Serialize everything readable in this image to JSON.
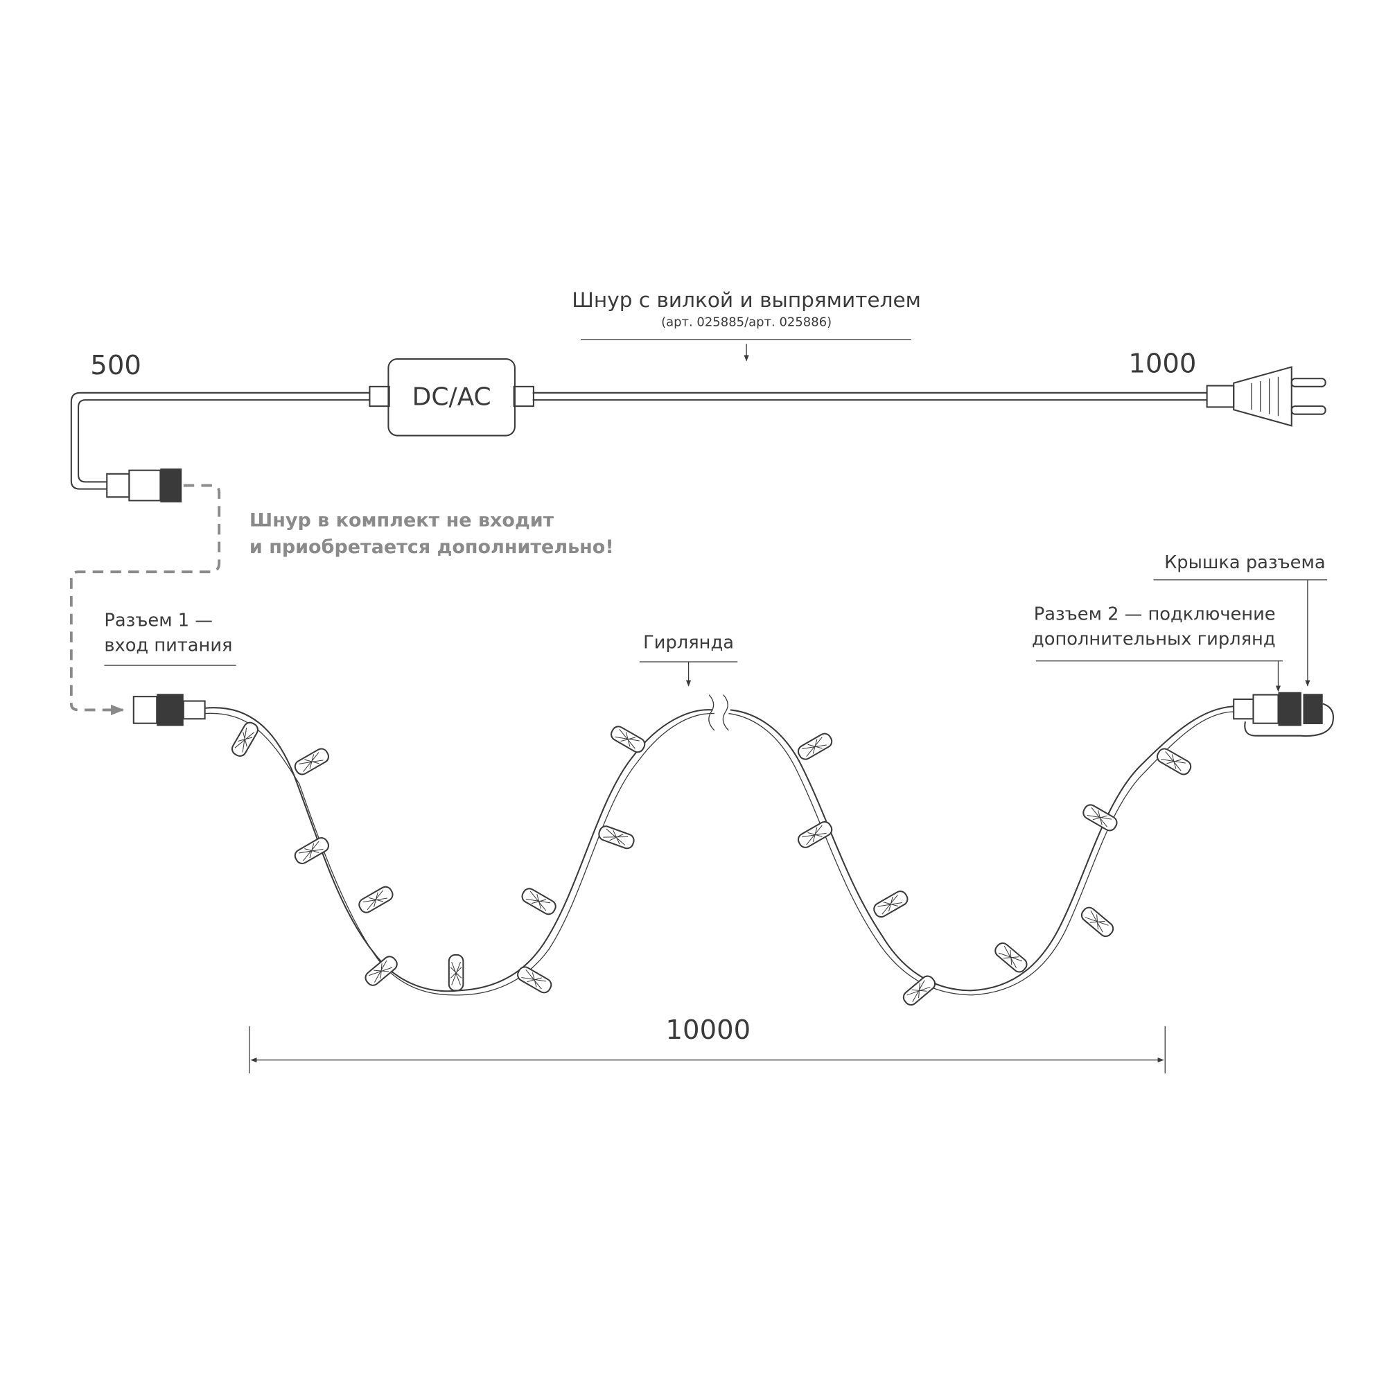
{
  "cord": {
    "title": "Шнур с вилкой и выпрямителем",
    "article": "(арт. 025885/арт. 025886)",
    "left_length": 500,
    "right_length": 1000,
    "box_label": "DC/AC"
  },
  "note": {
    "line1": "Шнур в комплект не входит",
    "line2": "и приобретается дополнительно!"
  },
  "connector1": {
    "line1": "Разъем 1 —",
    "line2": "вход питания"
  },
  "garland": {
    "label": "Гирлянда",
    "length": 10000
  },
  "cap": {
    "label": "Крышка разъема"
  },
  "connector2": {
    "line1": "Разъем 2 — подключение",
    "line2": "дополнительных гирлянд"
  }
}
